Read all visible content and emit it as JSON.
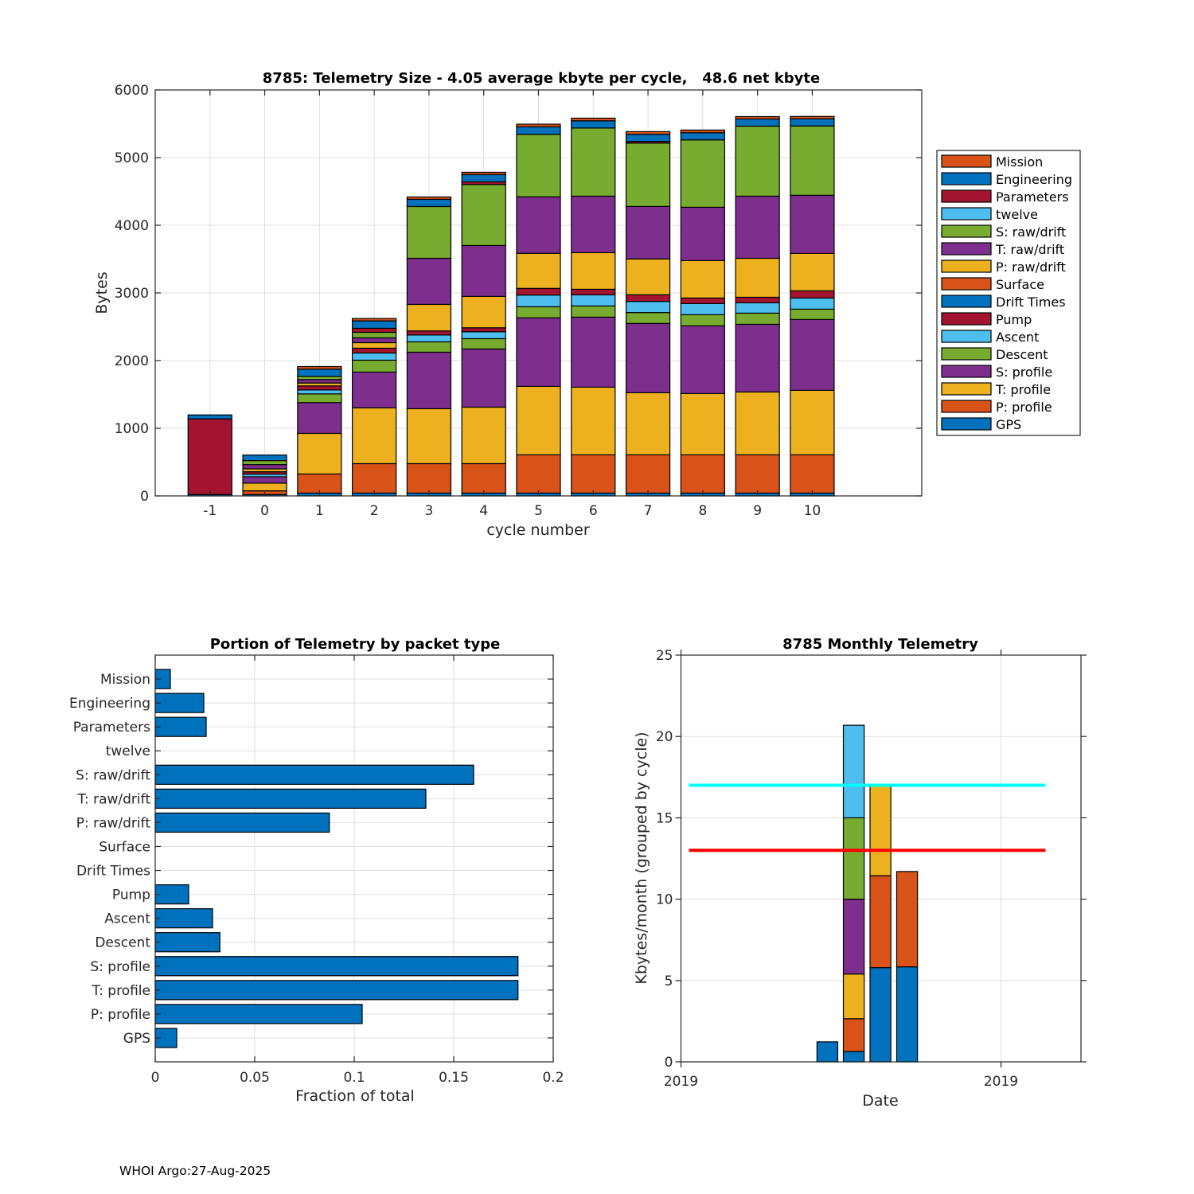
{
  "footer": "WHOI Argo:27-Aug-2025",
  "chart_data": [
    {
      "type": "bar",
      "stacked": true,
      "title": "8785: Telemetry Size - 4.05 average kbyte per cycle,   48.6 net kbyte",
      "xlabel": "cycle number",
      "ylabel": "Bytes",
      "x": [
        -1,
        0,
        1,
        2,
        3,
        4,
        5,
        6,
        7,
        8,
        9,
        10
      ],
      "xticks": [
        "-1",
        "0",
        "1",
        "2",
        "3",
        "4",
        "5",
        "6",
        "7",
        "8",
        "9",
        "10"
      ],
      "yticks": [
        "0",
        "1000",
        "2000",
        "3000",
        "4000",
        "5000",
        "6000"
      ],
      "xlim": [
        -2,
        12
      ],
      "ylim": [
        0,
        6000
      ],
      "grid": true,
      "legend_position": "right-outside",
      "series": [
        {
          "name": "GPS",
          "color": "#0072BD",
          "values": [
            20,
            20,
            42,
            42,
            42,
            42,
            42,
            42,
            42,
            42,
            42,
            42
          ]
        },
        {
          "name": "P: profile",
          "color": "#D95319",
          "values": [
            0,
            55,
            282,
            435,
            435,
            435,
            565,
            565,
            565,
            565,
            565,
            565
          ]
        },
        {
          "name": "T: profile",
          "color": "#EDB120",
          "values": [
            0,
            114,
            600,
            824,
            812,
            835,
            1012,
            1000,
            918,
            906,
            929,
            953
          ]
        },
        {
          "name": "S: profile",
          "color": "#7E2F8E",
          "values": [
            0,
            94,
            455,
            529,
            835,
            859,
            1012,
            1035,
            1024,
            1000,
            1000,
            1047
          ]
        },
        {
          "name": "Descent",
          "color": "#77AC30",
          "values": [
            0,
            0,
            129,
            176,
            153,
            153,
            165,
            165,
            161,
            165,
            165,
            153
          ]
        },
        {
          "name": "Ascent",
          "color": "#4DBEEE",
          "values": [
            0,
            39,
            59,
            106,
            102,
            102,
            173,
            165,
            165,
            165,
            153,
            165
          ]
        },
        {
          "name": "Pump",
          "color": "#A2142F",
          "values": [
            0,
            35,
            59,
            71,
            59,
            59,
            98,
            82,
            98,
            82,
            82,
            106
          ]
        },
        {
          "name": "Drift Times",
          "color": "#0072BD",
          "values": [
            0,
            0,
            0,
            0,
            0,
            0,
            0,
            0,
            0,
            0,
            0,
            0
          ]
        },
        {
          "name": "Surface",
          "color": "#D95319",
          "values": [
            0,
            0,
            0,
            0,
            0,
            0,
            0,
            0,
            0,
            0,
            0,
            0
          ]
        },
        {
          "name": "P: raw/drift",
          "color": "#EDB120",
          "values": [
            0,
            43,
            43,
            82,
            392,
            463,
            518,
            541,
            529,
            553,
            576,
            553
          ]
        },
        {
          "name": "T: raw/drift",
          "color": "#7E2F8E",
          "values": [
            0,
            63,
            51,
            71,
            682,
            753,
            835,
            835,
            776,
            788,
            918,
            859
          ]
        },
        {
          "name": "S: raw/drift",
          "color": "#77AC30",
          "values": [
            0,
            59,
            47,
            82,
            765,
            902,
            925,
            1008,
            937,
            996,
            1035,
            1024
          ]
        },
        {
          "name": "twelve",
          "color": "#4DBEEE",
          "values": [
            0,
            0,
            0,
            0,
            0,
            0,
            0,
            0,
            0,
            0,
            0,
            0
          ]
        },
        {
          "name": "Parameters",
          "color": "#A2142F",
          "values": [
            1118,
            0,
            0,
            59,
            0,
            39,
            0,
            0,
            24,
            0,
            0,
            0
          ]
        },
        {
          "name": "Engineering",
          "color": "#0072BD",
          "values": [
            59,
            82,
            106,
            110,
            106,
            106,
            110,
            106,
            106,
            106,
            106,
            106
          ]
        },
        {
          "name": "Mission",
          "color": "#D95319",
          "values": [
            0,
            0,
            39,
            35,
            35,
            35,
            39,
            39,
            39,
            39,
            35,
            35
          ]
        }
      ]
    },
    {
      "type": "bar",
      "orientation": "horizontal",
      "title": "Portion of Telemetry by packet type",
      "xlabel": "Fraction of total",
      "ylabel": "",
      "categories": [
        "Mission",
        "Engineering",
        "Parameters",
        "twelve",
        "S: raw/drift",
        "T: raw/drift",
        "P: raw/drift",
        "Surface",
        "Drift Times",
        "Pump",
        "Ascent",
        "Descent",
        "S: profile",
        "T: profile",
        "P: profile",
        "GPS"
      ],
      "values": [
        0.0076,
        0.0244,
        0.0256,
        0,
        0.16,
        0.136,
        0.0875,
        0,
        0,
        0.0168,
        0.0288,
        0.0325,
        0.1823,
        0.1823,
        0.104,
        0.0108
      ],
      "xticks": [
        "0",
        "0.05",
        "0.1",
        "0.15",
        "0.2"
      ],
      "xlim": [
        0,
        0.2
      ],
      "bar_color": "#0072BD",
      "grid": true
    },
    {
      "type": "bar",
      "stacked": true,
      "title": "8785 Monthly Telemetry",
      "xlabel": "Date",
      "ylabel": "Kbytes/month (grouped by cycle)",
      "x_units": "months after first 2019 tick",
      "xlim": [
        0,
        15.0
      ],
      "ylim": [
        0,
        25
      ],
      "xticks": [
        {
          "value": 0,
          "label": "2019"
        },
        {
          "value": 12,
          "label": "2019"
        }
      ],
      "yticks": [
        "0",
        "5",
        "10",
        "15",
        "20",
        "25"
      ],
      "grid": true,
      "segment_colors": [
        "#0072BD",
        "#D95319",
        "#EDB120",
        "#7E2F8E",
        "#77AC30",
        "#4DBEEE"
      ],
      "bars": [
        {
          "x": 5.49,
          "segments": [
            1.23
          ]
        },
        {
          "x": 6.48,
          "segments": [
            0.64,
            2.01,
            2.75,
            4.6,
            5.0,
            5.69
          ]
        },
        {
          "x": 7.48,
          "segments": [
            5.79,
            5.65,
            5.53
          ]
        },
        {
          "x": 8.48,
          "segments": [
            5.84,
            5.86
          ]
        }
      ],
      "reference_lines": [
        {
          "y": 17,
          "x_from": 0.3,
          "x_to": 13.67,
          "color": "#00FFFF"
        },
        {
          "y": 13,
          "x_from": 0.3,
          "x_to": 13.67,
          "color": "#FF0000"
        }
      ]
    }
  ]
}
